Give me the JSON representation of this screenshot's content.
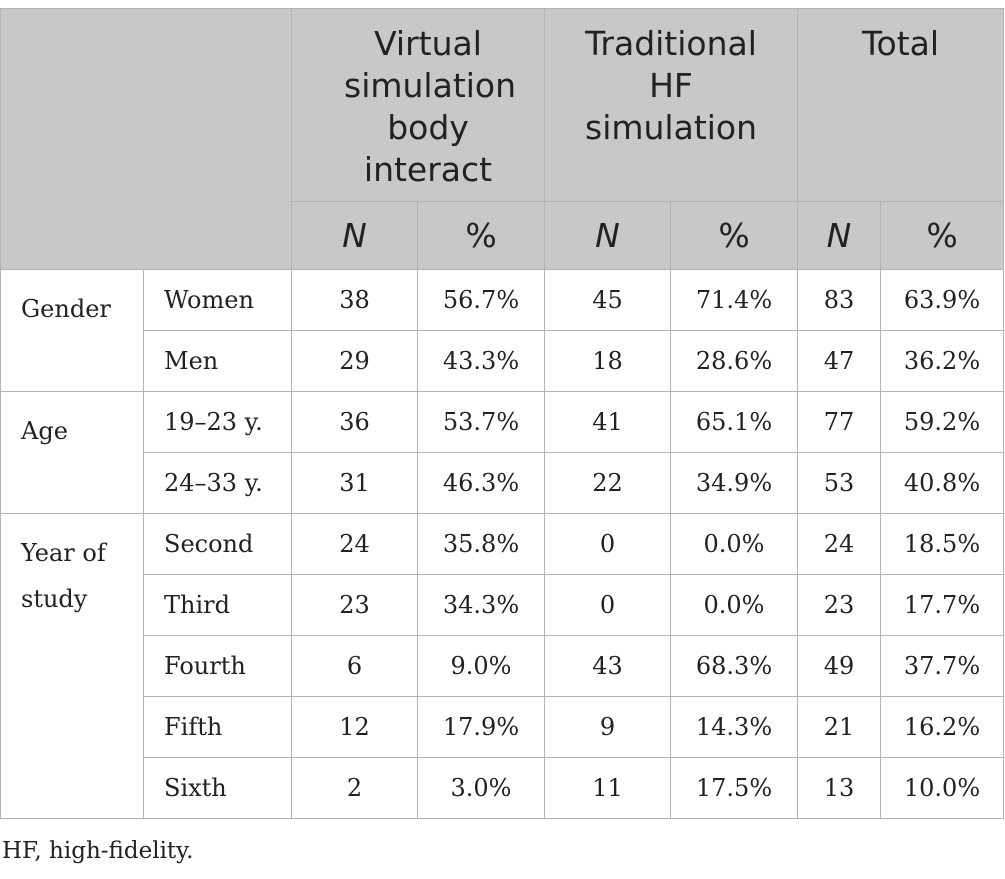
{
  "header": {
    "groups": [
      {
        "label": "Virtual simulation body interact"
      },
      {
        "label": "Traditional HF simulation"
      },
      {
        "label": "Total"
      }
    ],
    "sub_labels": [
      "N",
      "%",
      "N",
      "%",
      "N",
      "%"
    ]
  },
  "rows": [
    {
      "category": "Gender",
      "subcategory": "Women",
      "values": [
        "38",
        "56.7%",
        "45",
        "71.4%",
        "83",
        "63.9%"
      ]
    },
    {
      "category": "",
      "subcategory": "Men",
      "values": [
        "29",
        "43.3%",
        "18",
        "28.6%",
        "47",
        "36.2%"
      ]
    },
    {
      "category": "Age",
      "subcategory": "19–23 y.",
      "values": [
        "36",
        "53.7%",
        "41",
        "65.1%",
        "77",
        "59.2%"
      ]
    },
    {
      "category": "",
      "subcategory": "24–33 y.",
      "values": [
        "31",
        "46.3%",
        "22",
        "34.9%",
        "53",
        "40.8%"
      ]
    },
    {
      "category": "Year of study",
      "subcategory": "Second",
      "values": [
        "24",
        "35.8%",
        "0",
        "0.0%",
        "24",
        "18.5%"
      ]
    },
    {
      "category": "",
      "subcategory": "Third",
      "values": [
        "23",
        "34.3%",
        "0",
        "0.0%",
        "23",
        "17.7%"
      ]
    },
    {
      "category": "",
      "subcategory": "Fourth",
      "values": [
        "6",
        "9.0%",
        "43",
        "68.3%",
        "49",
        "37.7%"
      ]
    },
    {
      "category": "",
      "subcategory": "Fifth",
      "values": [
        "12",
        "17.9%",
        "9",
        "14.3%",
        "21",
        "16.2%"
      ]
    },
    {
      "category": "",
      "subcategory": "Sixth",
      "values": [
        "2",
        "3.0%",
        "11",
        "17.5%",
        "13",
        "10.0%"
      ]
    }
  ],
  "footnote": "HF, high-fidelity."
}
